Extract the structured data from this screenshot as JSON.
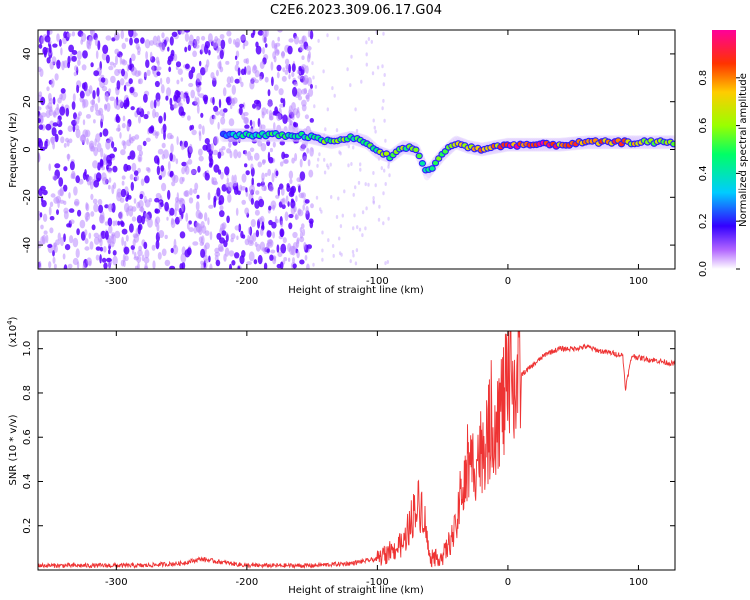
{
  "title": "C2E6.2023.309.06.17.G04",
  "chart_data": [
    {
      "type": "heatmap",
      "xlabel": "Height of straight line (km)",
      "ylabel": "Frequency (Hz)",
      "xlim": [
        -360,
        128
      ],
      "ylim": [
        -50,
        50
      ],
      "xticks": [
        -300,
        -200,
        -100,
        0,
        100
      ],
      "yticks": [
        -40,
        -20,
        0,
        20,
        40
      ],
      "colorbar": {
        "label": "Normalized spectral amplitude",
        "range": [
          0,
          1
        ],
        "ticks": [
          "0.0",
          "0.2",
          "0.4",
          "0.6",
          "0.8"
        ],
        "tick_values": [
          0,
          0.2,
          0.4,
          0.6,
          0.8
        ]
      },
      "trace": {
        "x": [
          -218,
          -200,
          -180,
          -160,
          -150,
          -135,
          -120,
          -108,
          -100,
          -90,
          -80,
          -70,
          -62,
          -50,
          -40,
          -30,
          -20,
          -10,
          0,
          20,
          40,
          60,
          80,
          100,
          128
        ],
        "y": [
          6,
          6,
          6,
          6,
          5,
          3,
          5,
          3,
          -1,
          -3,
          1,
          0,
          -10,
          -2,
          3,
          1,
          0,
          1,
          2,
          2,
          2,
          3,
          3,
          3,
          3
        ],
        "amplitude": [
          0.3,
          0.45,
          0.5,
          0.45,
          0.5,
          0.6,
          0.55,
          0.5,
          0.6,
          0.6,
          0.6,
          0.55,
          0.5,
          0.55,
          0.7,
          0.75,
          0.8,
          0.85,
          0.9,
          0.95,
          0.85,
          0.8,
          0.9,
          0.7,
          0.6
        ]
      }
    },
    {
      "type": "line",
      "xlabel": "Height of straight line (km)",
      "ylabel": "SNR (10 * v/v)",
      "ylabel_scale": "(x10",
      "ylabel_scale_exp": "4",
      "ylabel_scale_end": ")",
      "xlim": [
        -360,
        128
      ],
      "ylim": [
        0,
        1.08
      ],
      "xticks": [
        -300,
        -200,
        -100,
        0,
        100
      ],
      "yticks": [
        0.2,
        0.4,
        0.6,
        0.8,
        1.0
      ],
      "colors": {
        "line": "#ee3333"
      },
      "series": [
        {
          "x": [
            -360,
            -320,
            -280,
            -250,
            -235,
            -225,
            -200,
            -150,
            -120,
            -100,
            -90,
            -80,
            -70,
            -65,
            -60,
            -50,
            -40,
            -35,
            -30,
            -20,
            -10,
            0,
            10,
            20,
            30,
            40,
            50,
            60,
            70,
            80,
            88,
            90,
            95,
            100,
            110,
            120,
            128
          ],
          "values": [
            0.02,
            0.02,
            0.02,
            0.03,
            0.05,
            0.04,
            0.02,
            0.02,
            0.03,
            0.05,
            0.08,
            0.12,
            0.3,
            0.28,
            0.05,
            0.06,
            0.18,
            0.35,
            0.45,
            0.55,
            0.68,
            0.8,
            0.88,
            0.93,
            0.98,
            1.0,
            1.0,
            1.01,
            0.99,
            0.98,
            0.97,
            0.82,
            0.97,
            0.96,
            0.95,
            0.94,
            0.93
          ]
        }
      ]
    }
  ]
}
